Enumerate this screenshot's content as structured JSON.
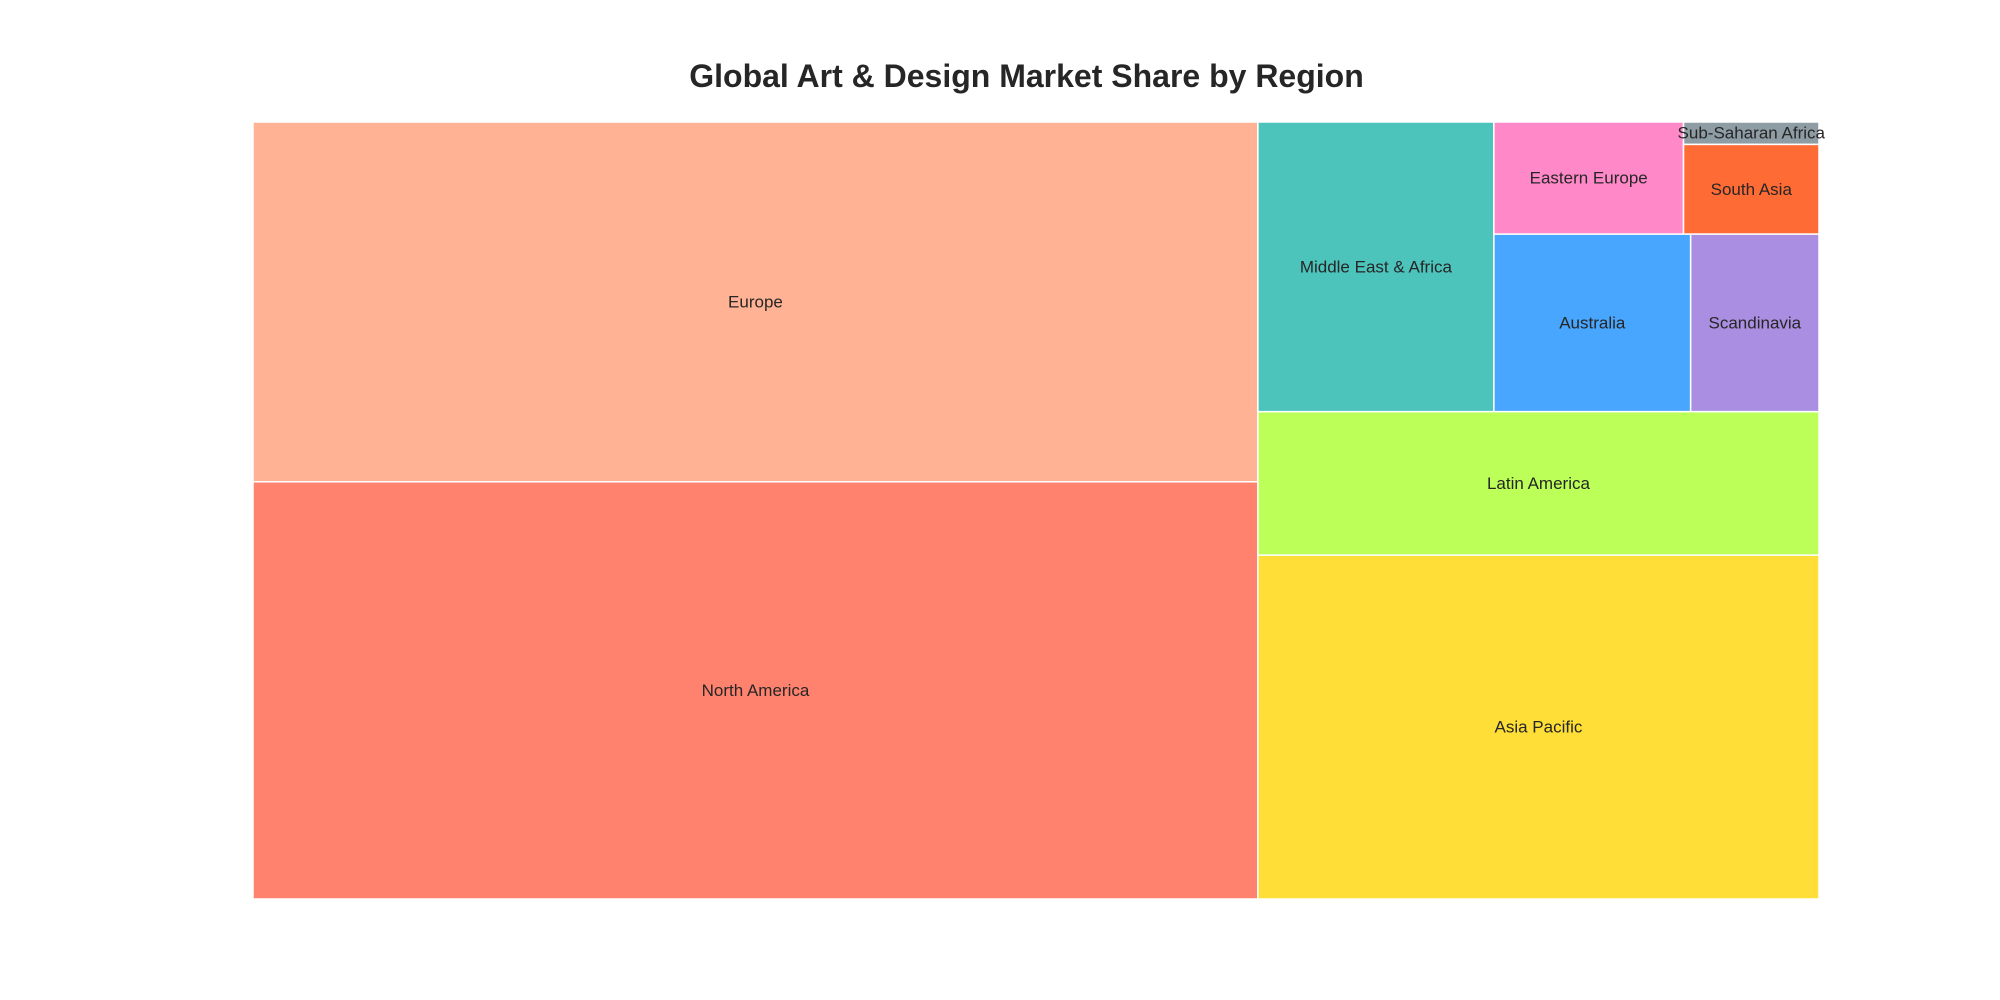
{
  "chart_data": {
    "type": "treemap",
    "title": "Global Art & Design Market Share by Region",
    "unit": "market share",
    "items": [
      {
        "label": "North America",
        "value": 27.6,
        "color": "#FF826E"
      },
      {
        "label": "Europe",
        "value": 23.8,
        "color": "#FFB294"
      },
      {
        "label": "Asia Pacific",
        "value": 12.7,
        "color": "#FFDF37"
      },
      {
        "label": "Latin America",
        "value": 5.3,
        "color": "#BBFF58"
      },
      {
        "label": "Middle East & Africa",
        "value": 4.5,
        "color": "#4CC3BB"
      },
      {
        "label": "Australia",
        "value": 2.3,
        "color": "#48A6FE"
      },
      {
        "label": "Eastern Europe",
        "value": 1.4,
        "color": "#FF89C8"
      },
      {
        "label": "Scandinavia",
        "value": 1.5,
        "color": "#A98EE1"
      },
      {
        "label": "South Asia",
        "value": 0.8,
        "color": "#FF6B35"
      },
      {
        "label": "Sub-Saharan Africa",
        "value": 0.2,
        "color": "#8E9CA4"
      }
    ]
  }
}
